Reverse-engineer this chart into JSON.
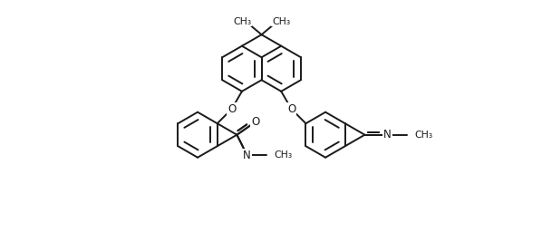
{
  "bg_color": "#ffffff",
  "line_color": "#1a1a1a",
  "line_width": 1.4,
  "figsize": [
    5.98,
    2.78
  ],
  "dpi": 100,
  "xlim": [
    -1.0,
    14.0
  ],
  "ylim": [
    -1.5,
    6.5
  ]
}
